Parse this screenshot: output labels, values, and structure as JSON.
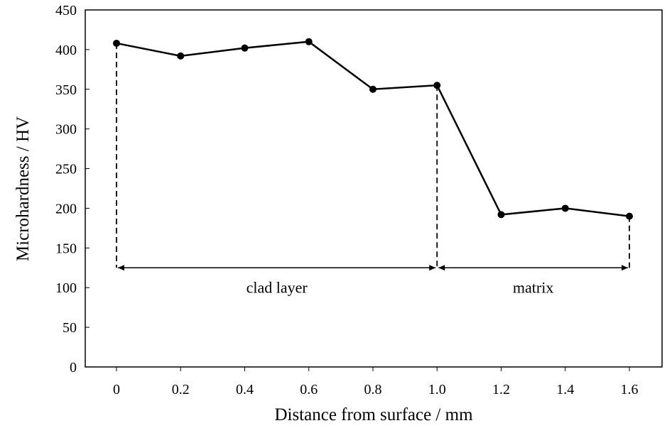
{
  "chart_data": {
    "type": "line",
    "title": "",
    "xlabel": "Distance from surface / mm",
    "ylabel": "Microhardness / HV",
    "x": [
      0,
      0.2,
      0.4,
      0.6,
      0.8,
      1.0,
      1.2,
      1.4,
      1.6
    ],
    "x_tick_labels": [
      "0",
      "0.2",
      "0.4",
      "0.6",
      "0.8",
      "1.0",
      "1.2",
      "1.4",
      "1.6"
    ],
    "series": [
      {
        "name": "Microhardness",
        "values": [
          408,
          392,
          402,
          410,
          350,
          355,
          192,
          200,
          190
        ],
        "color": "#000000",
        "marker": "circle"
      }
    ],
    "ylim": [
      0,
      450
    ],
    "y_ticks": [
      0,
      50,
      100,
      150,
      200,
      250,
      300,
      350,
      400,
      450
    ],
    "grid": false,
    "legend": "none",
    "annotations": [
      {
        "label": "clad layer",
        "from": 0,
        "to": 1.0,
        "level": 125
      },
      {
        "label": "matrix",
        "from": 1.0,
        "to": 1.6,
        "level": 125
      }
    ]
  }
}
